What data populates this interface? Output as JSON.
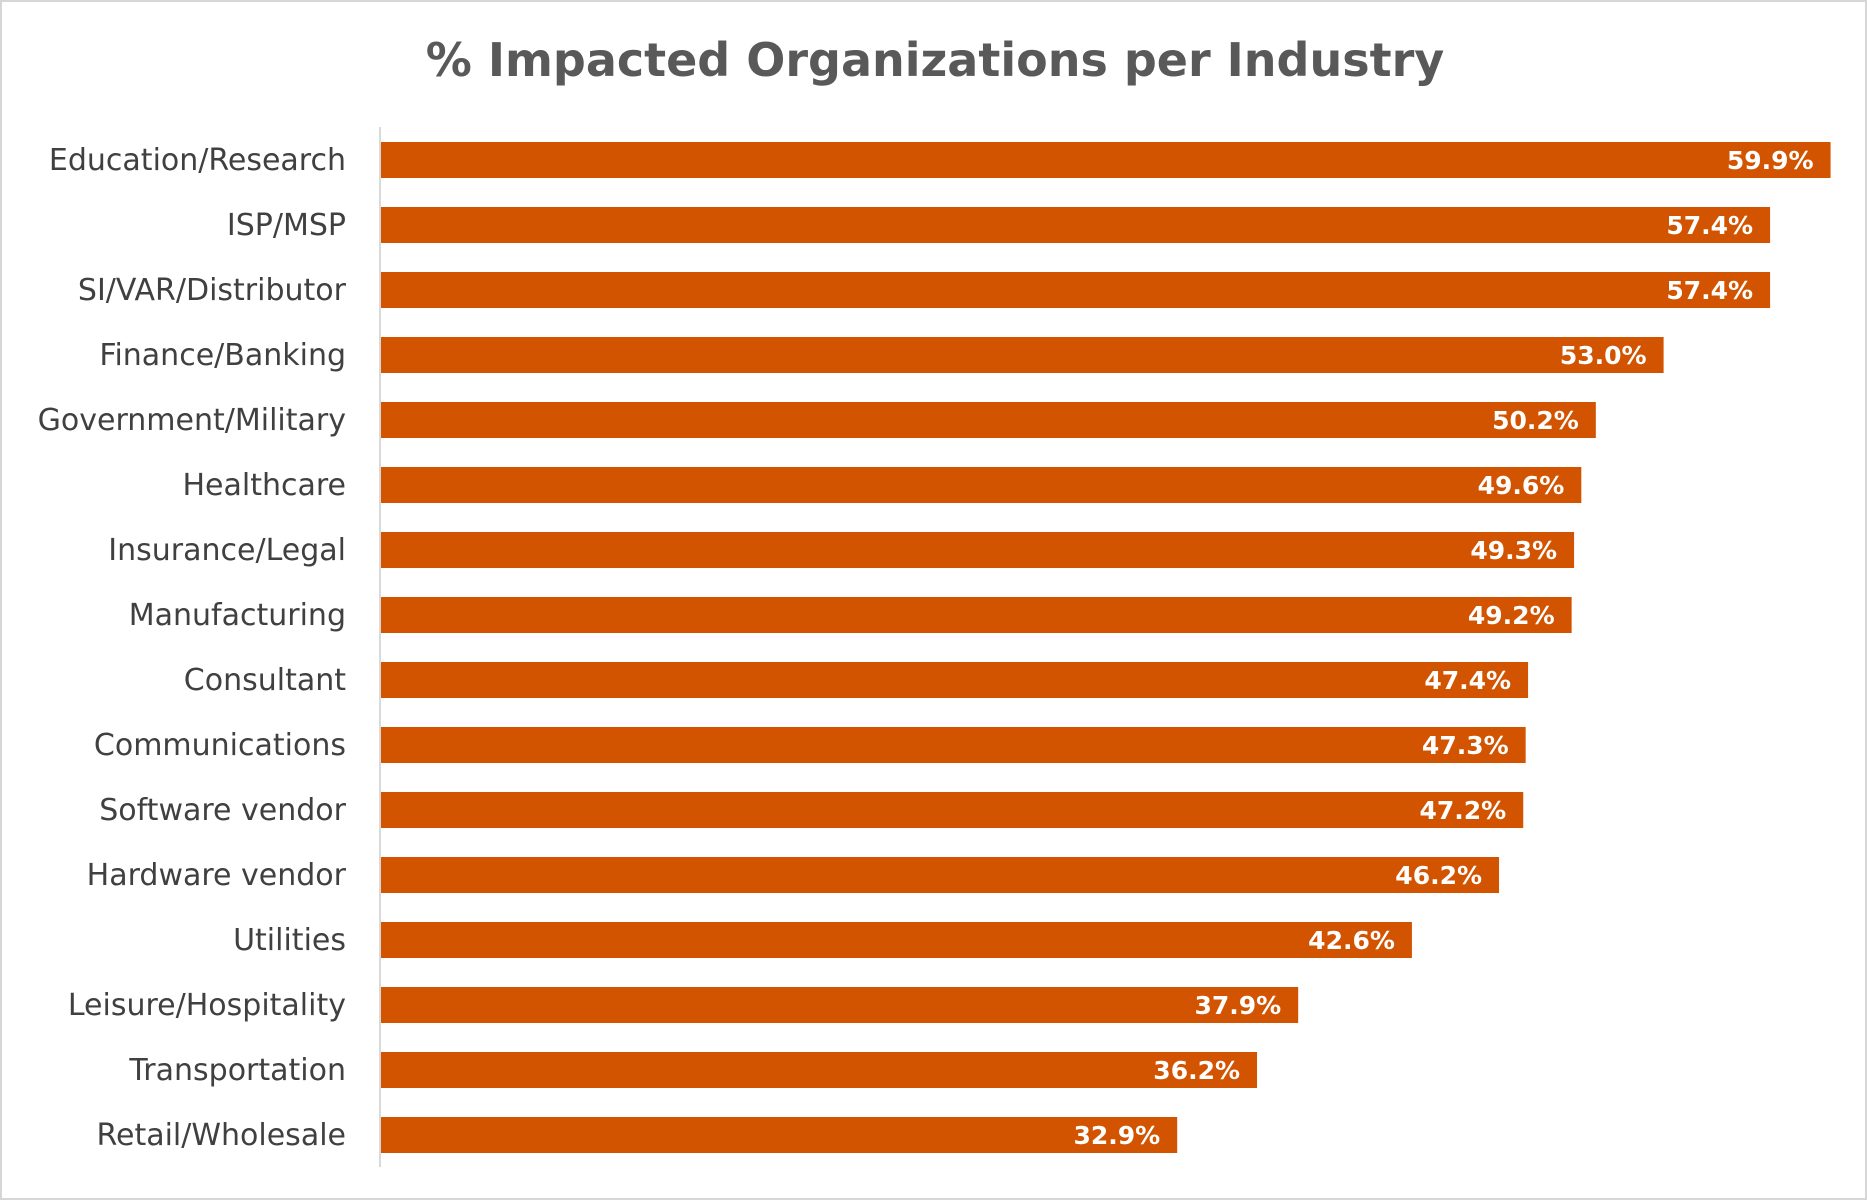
{
  "chart_data": {
    "type": "bar",
    "orientation": "horizontal",
    "title": "% Impacted Organizations per Industry",
    "xlabel": "",
    "ylabel": "",
    "categories": [
      "Education/Research",
      "ISP/MSP",
      "SI/VAR/Distributor",
      "Finance/Banking",
      "Government/Military",
      "Healthcare",
      "Insurance/Legal",
      "Manufacturing",
      "Consultant",
      "Communications",
      "Software vendor",
      "Hardware vendor",
      "Utilities",
      "Leisure/Hospitality",
      "Transportation",
      "Retail/Wholesale"
    ],
    "values": [
      59.9,
      57.4,
      57.4,
      53.0,
      50.2,
      49.6,
      49.3,
      49.2,
      47.4,
      47.3,
      47.2,
      46.2,
      42.6,
      37.9,
      36.2,
      32.9
    ],
    "value_labels": [
      "59.9%",
      "57.4%",
      "57.4%",
      "53.0%",
      "50.2%",
      "49.6%",
      "49.3%",
      "49.2%",
      "47.4%",
      "47.3%",
      "47.2%",
      "46.2%",
      "42.6%",
      "37.9%",
      "36.2%",
      "32.9%"
    ],
    "xlim": [
      0,
      60
    ],
    "grid": false,
    "legend": "none",
    "bar_color": "#d35400",
    "axis_color": "#d9d9d9"
  }
}
